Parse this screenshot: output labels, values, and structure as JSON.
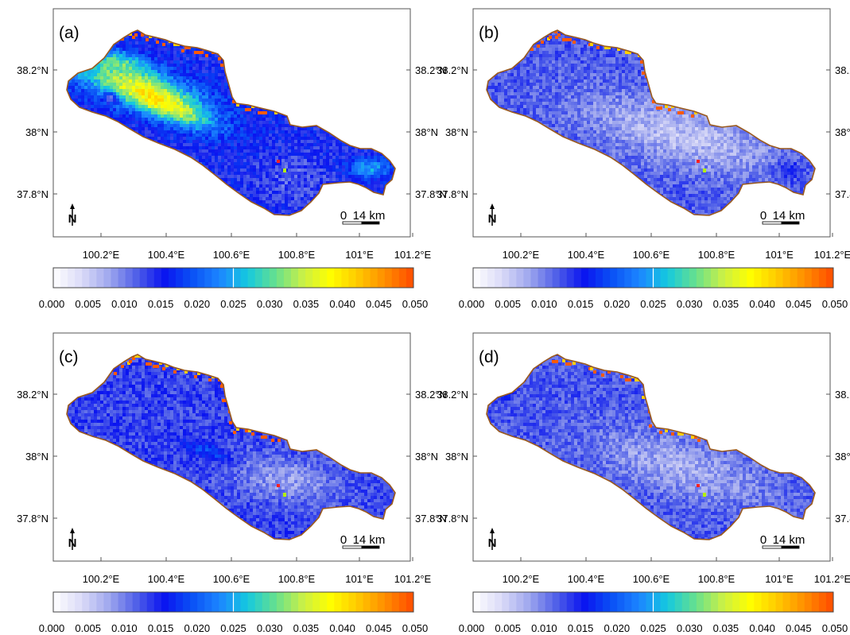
{
  "panels": [
    {
      "label": "(a)",
      "variant": "a"
    },
    {
      "label": "(b)",
      "variant": "b"
    },
    {
      "label": "(c)",
      "variant": "c"
    },
    {
      "label": "(d)",
      "variant": "d"
    }
  ],
  "lat_ticks": [
    "38.2°N",
    "38°N",
    "37.8°N"
  ],
  "lon_ticks": [
    "100.2°E",
    "100.4°E",
    "100.6°E",
    "100.8°E",
    "101°E",
    "101.2°E"
  ],
  "scale_bar": {
    "zero": "0",
    "value": "14 km"
  },
  "north_arrow": {
    "letter": "N"
  },
  "colorbar": {
    "ticks": [
      "0.000",
      "0.005",
      "0.010",
      "0.015",
      "0.020",
      "0.025",
      "0.030",
      "0.035",
      "0.040",
      "0.045",
      "0.050"
    ],
    "min": 0.0,
    "max": 0.05,
    "steps": 50,
    "colors": [
      "#ffffff",
      "#dcdcf8",
      "#a0a8ee",
      "#5060e8",
      "#0a14f0",
      "#0a50f5",
      "#1c86ff",
      "#14c8e0",
      "#64e090",
      "#c8f048",
      "#ffff00",
      "#ffc800",
      "#ff8c00",
      "#ff4a00"
    ]
  },
  "map_colors": {
    "boundary": "#9a5a1e",
    "edge_hot": "#ff5a00"
  }
}
